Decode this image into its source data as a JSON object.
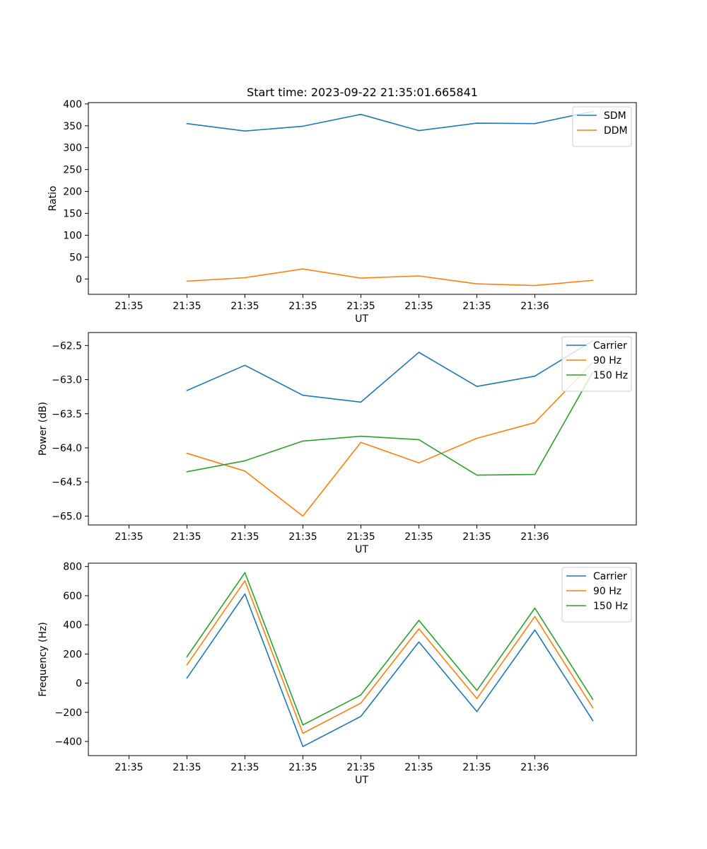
{
  "title": "Start time: 2023-09-22 21:35:01.665841",
  "colors": {
    "blue": "#1f77b4",
    "orange": "#ff7f0e",
    "green": "#2ca02c"
  },
  "x_tick_labels": [
    "21:35",
    "21:35",
    "21:35",
    "21:35",
    "21:35",
    "21:35",
    "21:35",
    "21:36"
  ],
  "chart_data": [
    {
      "type": "line",
      "title": "Start time: 2023-09-22 21:35:01.665841",
      "xlabel": "UT",
      "ylabel": "Ratio",
      "x": [
        1,
        2,
        3,
        4,
        5,
        6,
        7,
        8
      ],
      "xlim": [
        -0.7,
        8.75
      ],
      "ylim": [
        -35,
        403
      ],
      "yticks": [
        0,
        50,
        100,
        150,
        200,
        250,
        300,
        350,
        400
      ],
      "ytick_labels": [
        "0",
        "50",
        "100",
        "150",
        "200",
        "250",
        "300",
        "350",
        "400"
      ],
      "legend_position": "top-right",
      "series": [
        {
          "name": "SDM",
          "color": "#1f77b4",
          "values": [
            355,
            338,
            349,
            376,
            339,
            356,
            355,
            383
          ]
        },
        {
          "name": "DDM",
          "color": "#ff7f0e",
          "values": [
            -5,
            3,
            23,
            2,
            7,
            -11,
            -15,
            -3
          ]
        }
      ]
    },
    {
      "type": "line",
      "xlabel": "UT",
      "ylabel": "Power (dB)",
      "x": [
        1,
        2,
        3,
        4,
        5,
        6,
        7,
        8
      ],
      "xlim": [
        -0.7,
        8.75
      ],
      "ylim": [
        -65.13,
        -62.31
      ],
      "yticks": [
        -65.0,
        -64.5,
        -64.0,
        -63.5,
        -63.0,
        -62.5
      ],
      "ytick_labels": [
        "−65.0",
        "−64.5",
        "−64.0",
        "−63.5",
        "−63.0",
        "−62.5"
      ],
      "legend_position": "top-right",
      "series": [
        {
          "name": "Carrier",
          "color": "#1f77b4",
          "values": [
            -63.16,
            -62.79,
            -63.23,
            -63.33,
            -62.6,
            -63.1,
            -62.95,
            -62.43
          ]
        },
        {
          "name": "90 Hz",
          "color": "#ff7f0e",
          "values": [
            -64.08,
            -64.34,
            -65.0,
            -63.92,
            -64.22,
            -63.86,
            -63.63,
            -62.75
          ]
        },
        {
          "name": "150 Hz",
          "color": "#2ca02c",
          "values": [
            -64.35,
            -64.19,
            -63.9,
            -63.83,
            -63.88,
            -64.4,
            -64.39,
            -62.89
          ]
        }
      ]
    },
    {
      "type": "line",
      "xlabel": "UT",
      "ylabel": "Frequency (Hz)",
      "x": [
        1,
        2,
        3,
        4,
        5,
        6,
        7,
        8
      ],
      "xlim": [
        -0.7,
        8.75
      ],
      "ylim": [
        -497,
        823
      ],
      "yticks": [
        -400,
        -200,
        0,
        200,
        400,
        600,
        800
      ],
      "ytick_labels": [
        "−400",
        "−200",
        "0",
        "200",
        "400",
        "600",
        "800"
      ],
      "legend_position": "top-right",
      "series": [
        {
          "name": "Carrier",
          "color": "#1f77b4",
          "values": [
            35,
            612,
            -435,
            -228,
            283,
            -195,
            365,
            -257
          ]
        },
        {
          "name": "90 Hz",
          "color": "#ff7f0e",
          "values": [
            125,
            702,
            -344,
            -137,
            373,
            -106,
            457,
            -169
          ]
        },
        {
          "name": "150 Hz",
          "color": "#2ca02c",
          "values": [
            181,
            758,
            -287,
            -81,
            431,
            -50,
            515,
            -111
          ]
        }
      ]
    }
  ]
}
